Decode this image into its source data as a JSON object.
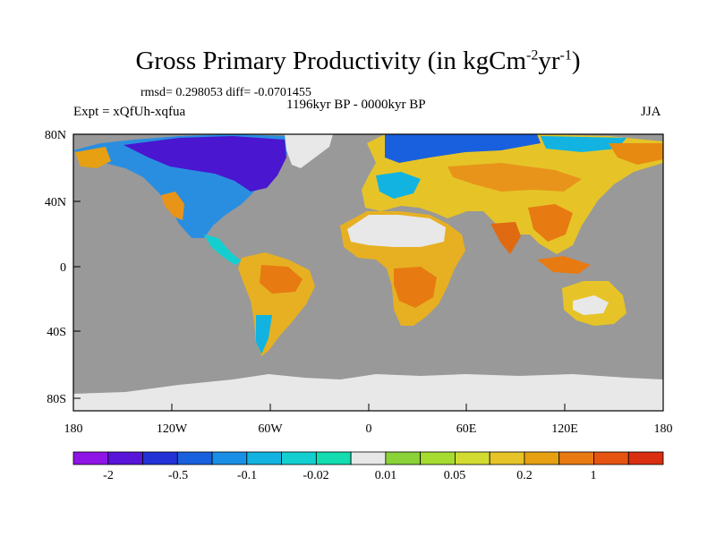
{
  "title": {
    "main": "Gross Primary Productivity (in kgCm",
    "exp1": "-2",
    "mid": "yr",
    "exp2": "-1",
    "end": ")"
  },
  "stats_text": "rmsd= 0.298053 diff= -0.0701455",
  "period_text": "1196kyr BP - 0000kyr BP",
  "experiment_text": "Expt = xQfUh-xqfua",
  "season_text": "JJA",
  "axes": {
    "lat_labels": [
      "80N",
      "40N",
      "0",
      "40S",
      "80S"
    ],
    "lon_labels": [
      "180",
      "120W",
      "60W",
      "0",
      "60E",
      "120E",
      "180"
    ]
  },
  "colorbar": {
    "colors": [
      "#8f14e6",
      "#5814d8",
      "#2332d6",
      "#1860de",
      "#1a8fe6",
      "#12b3e0",
      "#14cfd0",
      "#12dcb0",
      "#e8e8e8",
      "#8ad238",
      "#a6dc30",
      "#d2dc30",
      "#e6c428",
      "#e6a012",
      "#e87a12",
      "#e65412",
      "#d92e12"
    ],
    "labels": [
      "-2",
      "-0.5",
      "-0.1",
      "-0.02",
      "0.01",
      "0.05",
      "0.2",
      "1"
    ]
  },
  "colors": {
    "ocean": "#999999",
    "no_data": "#e8e8e8"
  }
}
